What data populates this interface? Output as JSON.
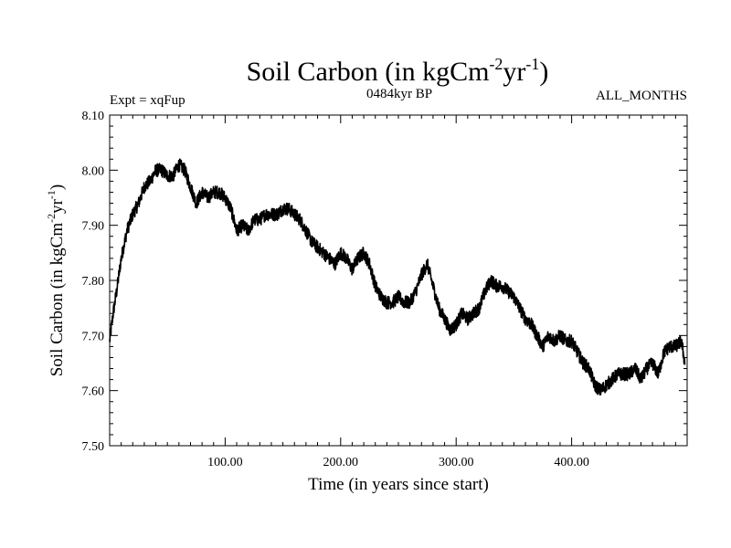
{
  "chart_data": {
    "type": "line",
    "title_main": "Soil Carbon (in kgCm",
    "title_sup1": "-2",
    "title_mid": "yr",
    "title_sup2": "-1",
    "title_end": ")",
    "expt_label": "Expt = xqFup",
    "period_label": "0484kyr BP",
    "months_label": "ALL_MONTHS",
    "xlabel": "Time (in years since start)",
    "ylabel_main": "Soil Carbon (in kgCm",
    "ylabel_sup1": "-2",
    "ylabel_mid": "yr",
    "ylabel_sup2": "-1",
    "ylabel_end": ")",
    "xlim": [
      0,
      500
    ],
    "ylim": [
      7.5,
      8.1
    ],
    "x_ticks": [
      100,
      200,
      300,
      400
    ],
    "x_tick_labels": [
      "100.00",
      "200.00",
      "300.00",
      "400.00"
    ],
    "y_ticks": [
      7.5,
      7.6,
      7.7,
      7.8,
      7.9,
      8.0,
      8.1
    ],
    "y_tick_labels": [
      "7.50",
      "7.60",
      "7.70",
      "7.80",
      "7.90",
      "8.00",
      "8.10"
    ],
    "series": [
      {
        "name": "Soil Carbon",
        "color": "#000000",
        "x": [
          0,
          3,
          6,
          10,
          15,
          20,
          25,
          30,
          35,
          40,
          45,
          50,
          55,
          60,
          65,
          70,
          75,
          80,
          85,
          90,
          95,
          100,
          105,
          110,
          115,
          120,
          125,
          130,
          135,
          140,
          145,
          150,
          155,
          160,
          165,
          170,
          175,
          180,
          185,
          190,
          195,
          200,
          205,
          210,
          215,
          220,
          225,
          230,
          235,
          240,
          245,
          250,
          255,
          260,
          265,
          270,
          275,
          280,
          285,
          290,
          295,
          300,
          305,
          310,
          315,
          320,
          325,
          330,
          335,
          340,
          345,
          350,
          355,
          360,
          365,
          370,
          375,
          380,
          385,
          390,
          395,
          400,
          405,
          410,
          415,
          420,
          425,
          430,
          435,
          440,
          445,
          450,
          455,
          460,
          465,
          470,
          475,
          480,
          485,
          490,
          495,
          498
        ],
        "y": [
          7.69,
          7.74,
          7.78,
          7.84,
          7.89,
          7.92,
          7.94,
          7.97,
          7.98,
          8.0,
          8.0,
          7.99,
          7.99,
          8.01,
          8.0,
          7.97,
          7.94,
          7.96,
          7.95,
          7.96,
          7.96,
          7.95,
          7.93,
          7.89,
          7.9,
          7.89,
          7.91,
          7.91,
          7.92,
          7.92,
          7.92,
          7.93,
          7.93,
          7.92,
          7.91,
          7.89,
          7.87,
          7.86,
          7.85,
          7.84,
          7.83,
          7.85,
          7.84,
          7.82,
          7.84,
          7.85,
          7.83,
          7.79,
          7.77,
          7.76,
          7.76,
          7.77,
          7.76,
          7.76,
          7.78,
          7.81,
          7.83,
          7.79,
          7.75,
          7.73,
          7.71,
          7.72,
          7.74,
          7.73,
          7.74,
          7.75,
          7.78,
          7.8,
          7.79,
          7.79,
          7.78,
          7.77,
          7.75,
          7.73,
          7.72,
          7.7,
          7.68,
          7.7,
          7.69,
          7.7,
          7.69,
          7.69,
          7.67,
          7.65,
          7.64,
          7.61,
          7.6,
          7.61,
          7.62,
          7.63,
          7.63,
          7.63,
          7.64,
          7.62,
          7.64,
          7.65,
          7.63,
          7.67,
          7.68,
          7.68,
          7.69,
          7.65
        ],
        "noise_amplitude": 0.012
      }
    ]
  }
}
